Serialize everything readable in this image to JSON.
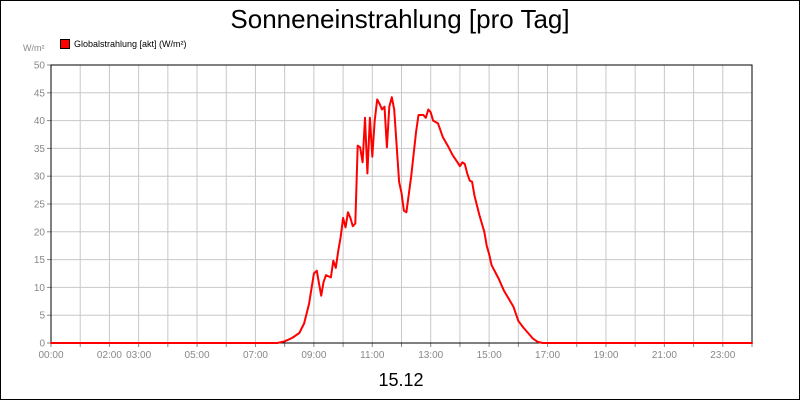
{
  "chart_data": {
    "type": "line",
    "title": "Sonneneinstrahlung [pro Tag]",
    "ylabel": "W/m²",
    "xlabel": "15.12",
    "ylim": [
      0,
      50
    ],
    "xlim": [
      "00:00",
      "24:00"
    ],
    "yticks": [
      "0",
      "5",
      "10",
      "15",
      "20",
      "25",
      "30",
      "35",
      "40",
      "45",
      "50"
    ],
    "xticks": [
      "00:00",
      "02:00",
      "03:00",
      "05:00",
      "07:00",
      "09:00",
      "11:00",
      "13:00",
      "15:00",
      "17:00",
      "19:00",
      "21:00",
      "23:00"
    ],
    "grid": true,
    "legend_position": "top-left",
    "series": [
      {
        "name": "Globalstrahlung [akt] (W/m²)",
        "color": "#ff0000",
        "points": [
          [
            "00:00",
            0
          ],
          [
            "07:45",
            0
          ],
          [
            "08:00",
            0.3
          ],
          [
            "08:15",
            0.9
          ],
          [
            "08:30",
            1.8
          ],
          [
            "08:40",
            3.5
          ],
          [
            "08:50",
            7
          ],
          [
            "09:00",
            12.5
          ],
          [
            "09:06",
            13
          ],
          [
            "09:10",
            11
          ],
          [
            "09:15",
            8.5
          ],
          [
            "09:20",
            11
          ],
          [
            "09:25",
            12.2
          ],
          [
            "09:35",
            11.8
          ],
          [
            "09:40",
            14.8
          ],
          [
            "09:45",
            13.5
          ],
          [
            "09:50",
            16.5
          ],
          [
            "09:55",
            19
          ],
          [
            "10:00",
            22.5
          ],
          [
            "10:05",
            20.8
          ],
          [
            "10:10",
            23.5
          ],
          [
            "10:15",
            22.5
          ],
          [
            "10:20",
            21
          ],
          [
            "10:25",
            21.5
          ],
          [
            "10:30",
            35.5
          ],
          [
            "10:35",
            35.2
          ],
          [
            "10:40",
            32.5
          ],
          [
            "10:45",
            40.5
          ],
          [
            "10:50",
            30.5
          ],
          [
            "10:55",
            40.5
          ],
          [
            "11:00",
            33.5
          ],
          [
            "11:05",
            40
          ],
          [
            "11:10",
            43.8
          ],
          [
            "11:15",
            43
          ],
          [
            "11:20",
            42
          ],
          [
            "11:25",
            42.5
          ],
          [
            "11:30",
            35.2
          ],
          [
            "11:35",
            42.5
          ],
          [
            "11:40",
            44.2
          ],
          [
            "11:45",
            42
          ],
          [
            "11:55",
            29
          ],
          [
            "12:00",
            27
          ],
          [
            "12:05",
            23.8
          ],
          [
            "12:10",
            23.5
          ],
          [
            "12:20",
            30
          ],
          [
            "12:30",
            38
          ],
          [
            "12:35",
            41
          ],
          [
            "12:45",
            41
          ],
          [
            "12:50",
            40.5
          ],
          [
            "12:55",
            42
          ],
          [
            "13:00",
            41.5
          ],
          [
            "13:05",
            40
          ],
          [
            "13:15",
            39.5
          ],
          [
            "13:25",
            37
          ],
          [
            "13:35",
            35.5
          ],
          [
            "13:45",
            33.8
          ],
          [
            "13:55",
            32.5
          ],
          [
            "14:00",
            31.8
          ],
          [
            "14:05",
            32.5
          ],
          [
            "14:10",
            32.2
          ],
          [
            "14:15",
            30.5
          ],
          [
            "14:20",
            29.2
          ],
          [
            "14:25",
            29
          ],
          [
            "14:30",
            26.5
          ],
          [
            "14:40",
            23
          ],
          [
            "14:50",
            20
          ],
          [
            "14:55",
            17.5
          ],
          [
            "15:00",
            16
          ],
          [
            "15:05",
            14
          ],
          [
            "15:20",
            11.5
          ],
          [
            "15:30",
            9.5
          ],
          [
            "15:40",
            8
          ],
          [
            "15:50",
            6.5
          ],
          [
            "16:00",
            4
          ],
          [
            "16:10",
            2.8
          ],
          [
            "16:20",
            1.8
          ],
          [
            "16:30",
            0.8
          ],
          [
            "16:40",
            0.2
          ],
          [
            "16:50",
            0
          ],
          [
            "24:00",
            0
          ]
        ]
      }
    ]
  }
}
